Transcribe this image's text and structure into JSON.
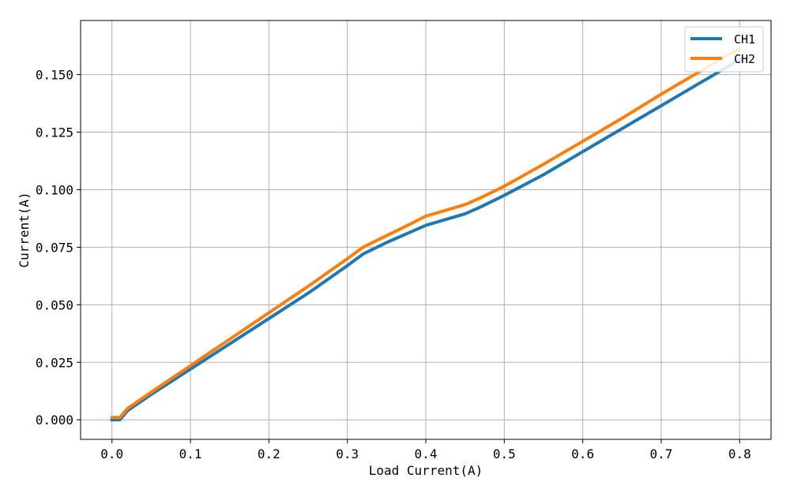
{
  "chart_data": {
    "type": "line",
    "xlabel": "Load Current(A)",
    "ylabel": "Current(A)",
    "xlim": [
      -0.04,
      0.84
    ],
    "ylim": [
      -0.0085,
      0.1735
    ],
    "xticks": [
      0.0,
      0.1,
      0.2,
      0.3,
      0.4,
      0.5,
      0.6,
      0.7,
      0.8
    ],
    "xtick_labels": [
      "0.0",
      "0.1",
      "0.2",
      "0.3",
      "0.4",
      "0.5",
      "0.6",
      "0.7",
      "0.8"
    ],
    "yticks": [
      0.0,
      0.025,
      0.05,
      0.075,
      0.1,
      0.125,
      0.15
    ],
    "ytick_labels": [
      "0.000",
      "0.025",
      "0.050",
      "0.075",
      "0.100",
      "0.125",
      "0.150"
    ],
    "grid": true,
    "legend_position": "top-right",
    "series": [
      {
        "name": "CH1",
        "color": "#1f77b4",
        "x": [
          0.0,
          0.01,
          0.02,
          0.05,
          0.1,
          0.15,
          0.2,
          0.25,
          0.3,
          0.32,
          0.35,
          0.38,
          0.4,
          0.45,
          0.47,
          0.5,
          0.55,
          0.6,
          0.65,
          0.7,
          0.75,
          0.8
        ],
        "y": [
          0.0,
          0.0,
          0.004,
          0.011,
          0.022,
          0.033,
          0.044,
          0.055,
          0.067,
          0.072,
          0.077,
          0.0815,
          0.0845,
          0.0895,
          0.0925,
          0.0975,
          0.1065,
          0.1165,
          0.1265,
          0.1365,
          0.1465,
          0.1565
        ]
      },
      {
        "name": "CH2",
        "color": "#ff7f0e",
        "x": [
          0.0,
          0.01,
          0.02,
          0.05,
          0.1,
          0.15,
          0.2,
          0.25,
          0.3,
          0.32,
          0.35,
          0.38,
          0.4,
          0.45,
          0.47,
          0.5,
          0.55,
          0.6,
          0.65,
          0.7,
          0.75,
          0.8
        ],
        "y": [
          0.001,
          0.001,
          0.005,
          0.012,
          0.0235,
          0.035,
          0.0465,
          0.058,
          0.07,
          0.075,
          0.08,
          0.085,
          0.0885,
          0.0935,
          0.0965,
          0.1015,
          0.111,
          0.121,
          0.131,
          0.1415,
          0.1515,
          0.1615
        ]
      }
    ]
  }
}
